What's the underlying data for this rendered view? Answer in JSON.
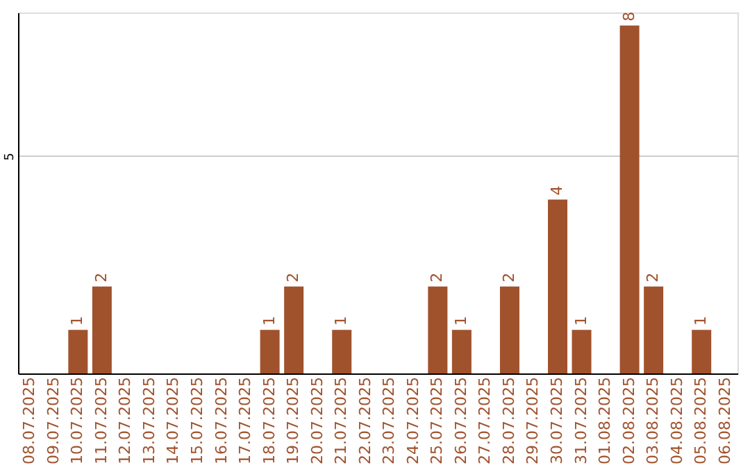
{
  "chart_data": {
    "type": "bar",
    "categories": [
      "08.07.2025",
      "09.07.2025",
      "10.07.2025",
      "11.07.2025",
      "12.07.2025",
      "13.07.2025",
      "14.07.2025",
      "15.07.2025",
      "16.07.2025",
      "17.07.2025",
      "18.07.2025",
      "19.07.2025",
      "20.07.2025",
      "21.07.2025",
      "22.07.2025",
      "23.07.2025",
      "24.07.2025",
      "25.07.2025",
      "26.07.2025",
      "27.07.2025",
      "28.07.2025",
      "29.07.2025",
      "30.07.2025",
      "31.07.2025",
      "01.08.2025",
      "02.08.2025",
      "03.08.2025",
      "04.08.2025",
      "05.08.2025",
      "06.08.2025"
    ],
    "values": [
      0,
      0,
      1,
      2,
      0,
      0,
      0,
      0,
      0,
      0,
      1,
      2,
      0,
      1,
      0,
      0,
      0,
      2,
      1,
      0,
      2,
      0,
      4,
      1,
      0,
      8,
      2,
      0,
      1,
      0
    ],
    "value_labels": [
      null,
      null,
      "1",
      "2",
      null,
      null,
      null,
      null,
      null,
      null,
      "1",
      "2",
      null,
      "1",
      null,
      null,
      null,
      "2",
      "1",
      null,
      "2",
      null,
      "4",
      "1",
      null,
      "8",
      "2",
      null,
      "1",
      null
    ],
    "color": "#a0522d",
    "ylim": [
      0,
      8.3
    ],
    "yticks": [
      5
    ],
    "grid": "y"
  }
}
